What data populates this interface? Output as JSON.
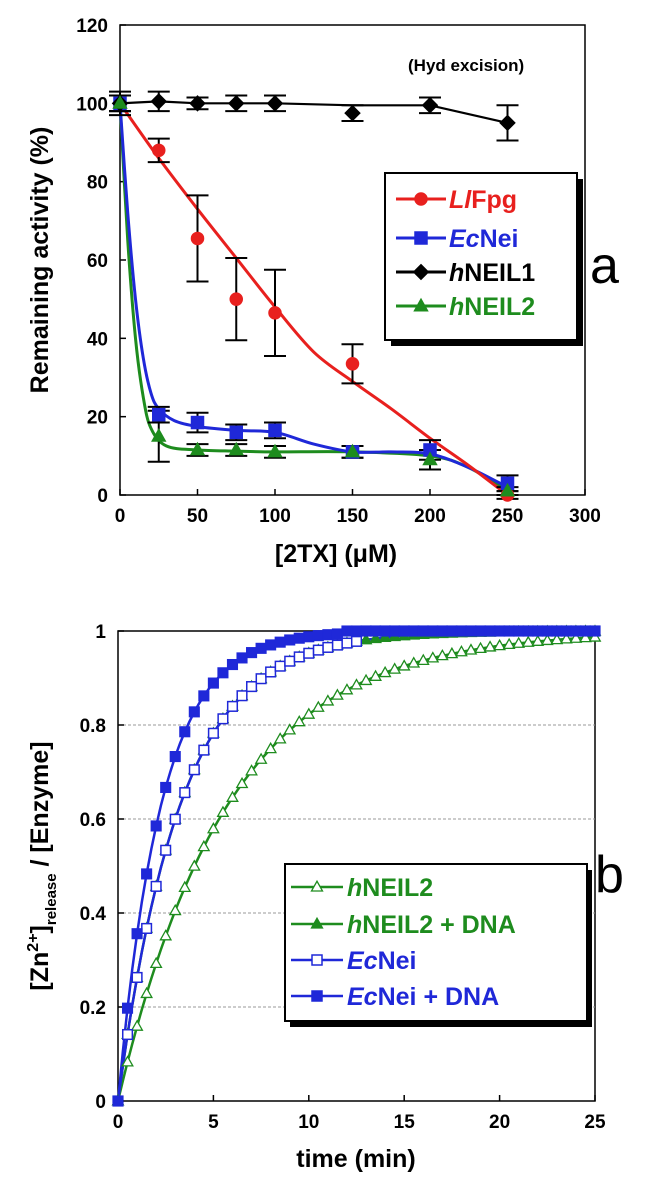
{
  "chart_data": [
    {
      "type": "line",
      "panel": "a",
      "annotation": "(Hyd excision)",
      "xlabel": "[2TX] (μM)",
      "ylabel": "Remaining activity (%)",
      "xlim": [
        0,
        300
      ],
      "ylim": [
        0,
        120
      ],
      "xticks": [
        0,
        50,
        100,
        150,
        200,
        250,
        300
      ],
      "yticks": [
        0,
        20,
        40,
        60,
        80,
        100,
        120
      ],
      "grid": false,
      "legend_position": "right",
      "series": [
        {
          "name_prefix": "Ll",
          "name_rest": "Fpg",
          "color": "#e8201e",
          "marker": "circle",
          "x": [
            0,
            25,
            50,
            75,
            100,
            150,
            250
          ],
          "y": [
            100,
            88,
            65.5,
            50,
            46.5,
            33.5,
            0
          ],
          "err": [
            2,
            3,
            11,
            10.5,
            11,
            5,
            1
          ],
          "fit": [
            [
              0,
              100
            ],
            [
              25,
              86
            ],
            [
              50,
              73
            ],
            [
              75,
              60.5
            ],
            [
              100,
              48
            ],
            [
              125,
              36.5
            ],
            [
              150,
              29
            ],
            [
              175,
              22
            ],
            [
              200,
              14.5
            ],
            [
              225,
              7.5
            ],
            [
              250,
              0
            ]
          ]
        },
        {
          "name_prefix": "Ec",
          "name_rest": "Nei",
          "color": "#1f28d8",
          "marker": "square",
          "x": [
            0,
            25,
            50,
            75,
            100,
            150,
            200,
            250
          ],
          "y": [
            100,
            20.5,
            18.5,
            16,
            16.5,
            11,
            11.5,
            3
          ],
          "err": [
            2,
            2,
            2.5,
            2,
            2,
            1.5,
            2.5,
            2
          ],
          "fit": [
            [
              0,
              100
            ],
            [
              5,
              72
            ],
            [
              10,
              50
            ],
            [
              15,
              35
            ],
            [
              20,
              26
            ],
            [
              25,
              22
            ],
            [
              35,
              19
            ],
            [
              50,
              17.5
            ],
            [
              75,
              16.5
            ],
            [
              100,
              16
            ],
            [
              125,
              13
            ],
            [
              150,
              11
            ],
            [
              175,
              11
            ],
            [
              200,
              10.5
            ],
            [
              225,
              7
            ],
            [
              250,
              2
            ]
          ]
        },
        {
          "name_prefix": "h",
          "name_rest": "NEIL1",
          "color": "#000000",
          "marker": "diamond",
          "x": [
            0,
            25,
            50,
            75,
            100,
            150,
            200,
            250
          ],
          "y": [
            100,
            100.5,
            100,
            100,
            100,
            97.5,
            99.5,
            95
          ],
          "err": [
            3,
            2.5,
            1.5,
            2,
            2,
            2,
            2,
            4.5
          ],
          "fit": [
            [
              0,
              100
            ],
            [
              25,
              100.5
            ],
            [
              50,
              100
            ],
            [
              75,
              100
            ],
            [
              100,
              100
            ],
            [
              150,
              99.5
            ],
            [
              200,
              99.5
            ],
            [
              250,
              95
            ]
          ]
        },
        {
          "name_prefix": "h",
          "name_rest": "NEIL2",
          "color": "#1e8c1e",
          "marker": "triangle",
          "x": [
            0,
            25,
            50,
            75,
            100,
            150,
            200,
            250
          ],
          "y": [
            100,
            15,
            11.5,
            11.5,
            11,
            11,
            9,
            1
          ],
          "err": [
            2,
            6.5,
            1.5,
            1.5,
            1.5,
            1.5,
            2.5,
            1
          ],
          "fit": [
            [
              0,
              100
            ],
            [
              5,
              65
            ],
            [
              10,
              40
            ],
            [
              15,
              25
            ],
            [
              20,
              17
            ],
            [
              30,
              12.5
            ],
            [
              50,
              11.5
            ],
            [
              75,
              11.2
            ],
            [
              100,
              11
            ],
            [
              150,
              11
            ],
            [
              200,
              10
            ],
            [
              225,
              7
            ],
            [
              250,
              1
            ]
          ]
        }
      ]
    },
    {
      "type": "line",
      "panel": "b",
      "xlabel": "time (min)",
      "ylabel_parts": [
        "[Zn",
        "2+",
        "]",
        "release",
        " / [Enzyme]"
      ],
      "xlim": [
        0,
        25
      ],
      "ylim": [
        0,
        1
      ],
      "xticks": [
        0,
        5,
        10,
        15,
        20,
        25
      ],
      "yticks": [
        0,
        0.2,
        0.4,
        0.6,
        0.8,
        1
      ],
      "ytick_labels": [
        "0",
        "0.2",
        "0.4",
        "0.6",
        "0.8",
        "1"
      ],
      "grid": "horizontal",
      "legend_position": "bottom-right",
      "series": [
        {
          "name_prefix": "h",
          "name_rest": "NEIL2",
          "color": "#1e8c1e",
          "marker": "triangle",
          "filled": false,
          "k": 0.173
        },
        {
          "name_prefix": "h",
          "name_rest": "NEIL2 + DNA",
          "color": "#1e8c1e",
          "marker": "triangle",
          "filled": true,
          "k": 0.305
        },
        {
          "name_prefix": "Ec",
          "name_rest": "Nei",
          "color": "#1f28d8",
          "marker": "square",
          "filled": false,
          "k": 0.305
        },
        {
          "name_prefix": "Ec",
          "name_rest": "Nei + DNA",
          "color": "#1f28d8",
          "marker": "square",
          "filled": true,
          "k": 0.44
        }
      ]
    }
  ],
  "panel_labels": {
    "a": "a",
    "b": "b"
  }
}
